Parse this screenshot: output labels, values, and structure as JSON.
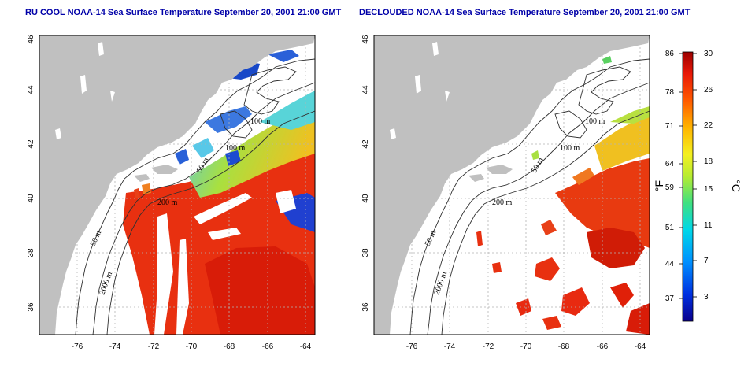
{
  "maps": [
    {
      "title": "RU COOL NOAA-14 Sea Surface Temperature September 20, 2001 21:00 GMT",
      "contour_labels": [
        "100 m",
        "100 m",
        "50 m",
        "200 m",
        "50 m",
        "2000 m"
      ]
    },
    {
      "title": "DECLOUDED NOAA-14 Sea Surface Temperature September 20, 2001 21:00 GMT",
      "contour_labels": [
        "100 m",
        "100 m",
        "50 m",
        "200 m",
        "50 m",
        "2000 m"
      ]
    }
  ],
  "axes": {
    "lon_ticks": [
      "-76",
      "-74",
      "-72",
      "-70",
      "-68",
      "-66",
      "-64"
    ],
    "lat_ticks": [
      "36",
      "38",
      "40",
      "42",
      "44",
      "46"
    ],
    "lon_range": [
      -77.5,
      -63
    ],
    "lat_range": [
      35,
      46
    ]
  },
  "colorbar": {
    "fahrenheit_ticks": [
      "86",
      "78",
      "71",
      "64",
      "59",
      "51",
      "44",
      "37"
    ],
    "celsius_ticks": [
      "30",
      "26",
      "22",
      "18",
      "15",
      "11",
      "7",
      "3"
    ],
    "fahrenheit_unit": "°F",
    "celsius_unit": "°C",
    "range_celsius": [
      0,
      30
    ]
  },
  "colors": {
    "land": "#c0c0c0",
    "title": "#0000a8",
    "no_data": "#ffffff",
    "warm": "#e82a10",
    "cold": "#1040d0"
  }
}
